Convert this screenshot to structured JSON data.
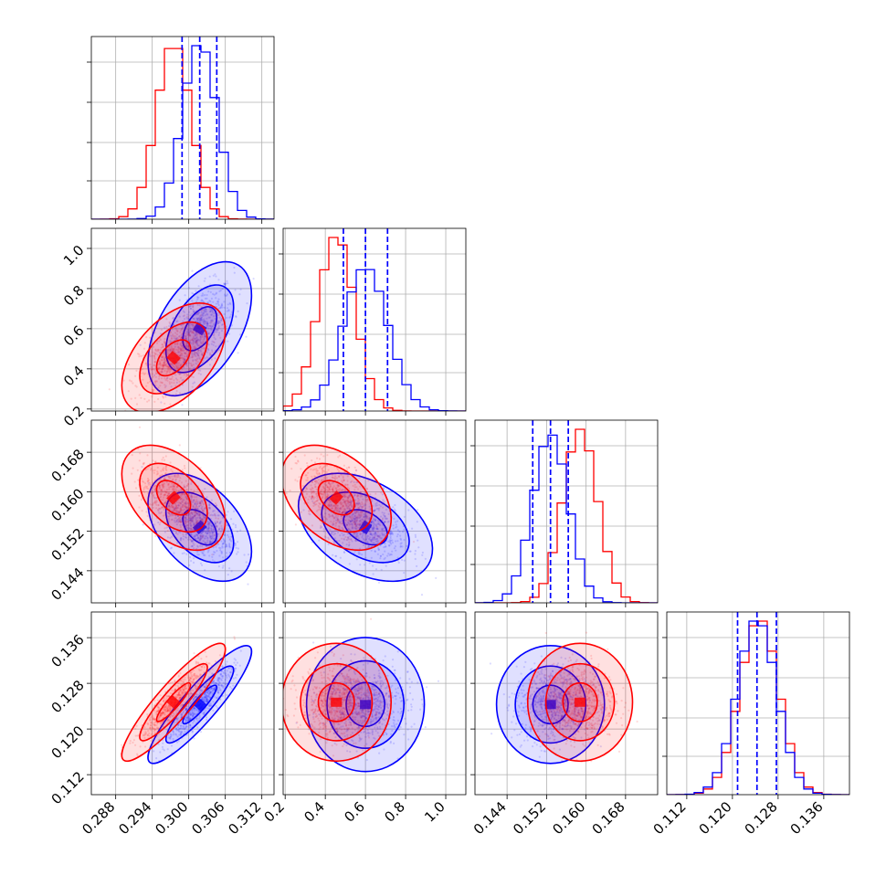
{
  "chart_data": {
    "type": "corner",
    "colors": {
      "blue_run": "#0000ff",
      "red_run": "#ff0000",
      "grid": "#b0b0b0",
      "frame": "#000000"
    },
    "parameters": [
      {
        "range": [
          0.284,
          0.314
        ],
        "ticks": [
          "0.288",
          "0.294",
          "0.300",
          "0.306",
          "0.312"
        ],
        "tick_values": [
          0.288,
          0.294,
          0.3,
          0.306,
          0.312
        ]
      },
      {
        "range": [
          0.19,
          1.1
        ],
        "ticks": [
          "0.2",
          "0.4",
          "0.6",
          "0.8",
          "1.0"
        ],
        "tick_values": [
          0.2,
          0.4,
          0.6,
          0.8,
          1.0
        ]
      },
      {
        "range": [
          0.1375,
          0.1745
        ],
        "ticks": [
          "0.144",
          "0.152",
          "0.160",
          "0.168"
        ],
        "tick_values": [
          0.144,
          0.152,
          0.16,
          0.168
        ]
      },
      {
        "range": [
          0.1085,
          0.1405
        ],
        "ticks": [
          "0.112",
          "0.120",
          "0.128",
          "0.136"
        ],
        "tick_values": [
          0.112,
          0.12,
          0.128,
          0.136
        ]
      }
    ],
    "blue_means": [
      0.3018,
      0.6,
      0.1528,
      0.1243
    ],
    "blue_sigmas": [
      0.0028,
      0.11,
      0.0036,
      0.0034
    ],
    "red_means": [
      0.2975,
      0.455,
      0.1588,
      0.1247
    ],
    "red_sigmas": [
      0.0028,
      0.09,
      0.0035,
      0.0034
    ],
    "quantile_lines": [
      [
        0.2989,
        0.3018,
        0.3046
      ],
      [
        0.49,
        0.6,
        0.71
      ],
      [
        0.1492,
        0.1528,
        0.1564
      ],
      [
        0.1209,
        0.1243,
        0.1277
      ]
    ],
    "pair_correlations": {
      "1_0": {
        "blue": 0.5,
        "red": 0.5
      },
      "2_0": {
        "blue": -0.45,
        "red": -0.45
      },
      "2_1": {
        "blue": -0.4,
        "red": -0.4
      },
      "3_0": {
        "blue": 0.9,
        "red": 0.9
      },
      "3_1": {
        "blue": 0.0,
        "red": 0.0
      },
      "3_2": {
        "blue": 0.0,
        "red": 0.0
      }
    },
    "histogram_bins": 20,
    "contour_levels": [
      0.39,
      0.86,
      0.99
    ],
    "grid": true
  }
}
